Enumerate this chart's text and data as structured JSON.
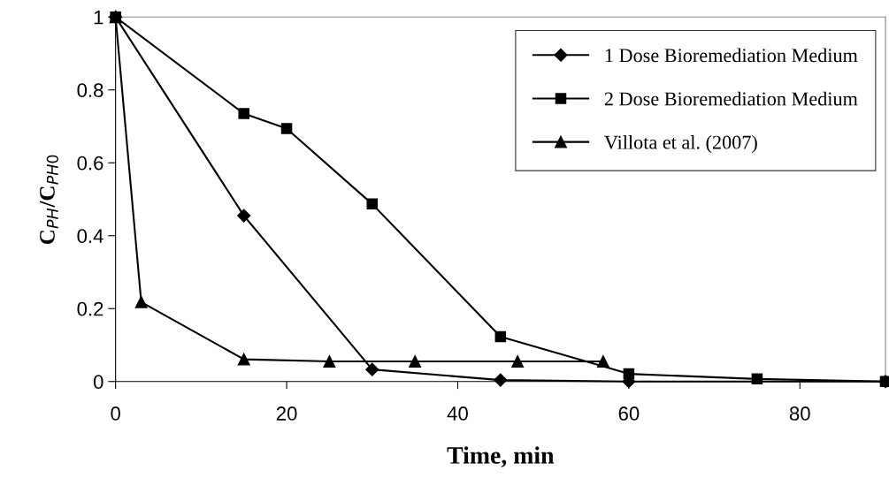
{
  "chart_data": {
    "type": "line",
    "xlabel": "Time, min",
    "ylabel": "C$_{PH}$/C$_{PH0}$",
    "xlim": [
      0,
      90
    ],
    "ylim": [
      0,
      1
    ],
    "xticks": [
      0,
      20,
      40,
      60,
      80
    ],
    "yticks": [
      0,
      0.2,
      0.4,
      0.6,
      0.8,
      1
    ],
    "grid": false,
    "legend": "top right",
    "line_style": "solid",
    "series": [
      {
        "name": "1 Dose Bioremediation Medium",
        "color": "#000000",
        "marker": "diamond",
        "x": [
          0,
          15,
          30,
          45,
          60,
          90
        ],
        "values": [
          1,
          0.455,
          0.033,
          0.004,
          0,
          0
        ]
      },
      {
        "name": "2 Dose Bioremediation Medium",
        "color": "#000000",
        "marker": "square",
        "x": [
          0,
          15,
          20,
          30,
          45,
          60,
          75,
          90
        ],
        "values": [
          1,
          0.735,
          0.694,
          0.487,
          0.123,
          0.021,
          0.007,
          0
        ]
      },
      {
        "name": "Villota et al. (2007)",
        "color": "#000000",
        "marker": "triangle",
        "x": [
          0,
          3,
          15,
          25,
          35,
          47,
          57
        ],
        "values": [
          1,
          0.218,
          0.061,
          0.055,
          0.055,
          0.055,
          0.055
        ]
      }
    ]
  }
}
